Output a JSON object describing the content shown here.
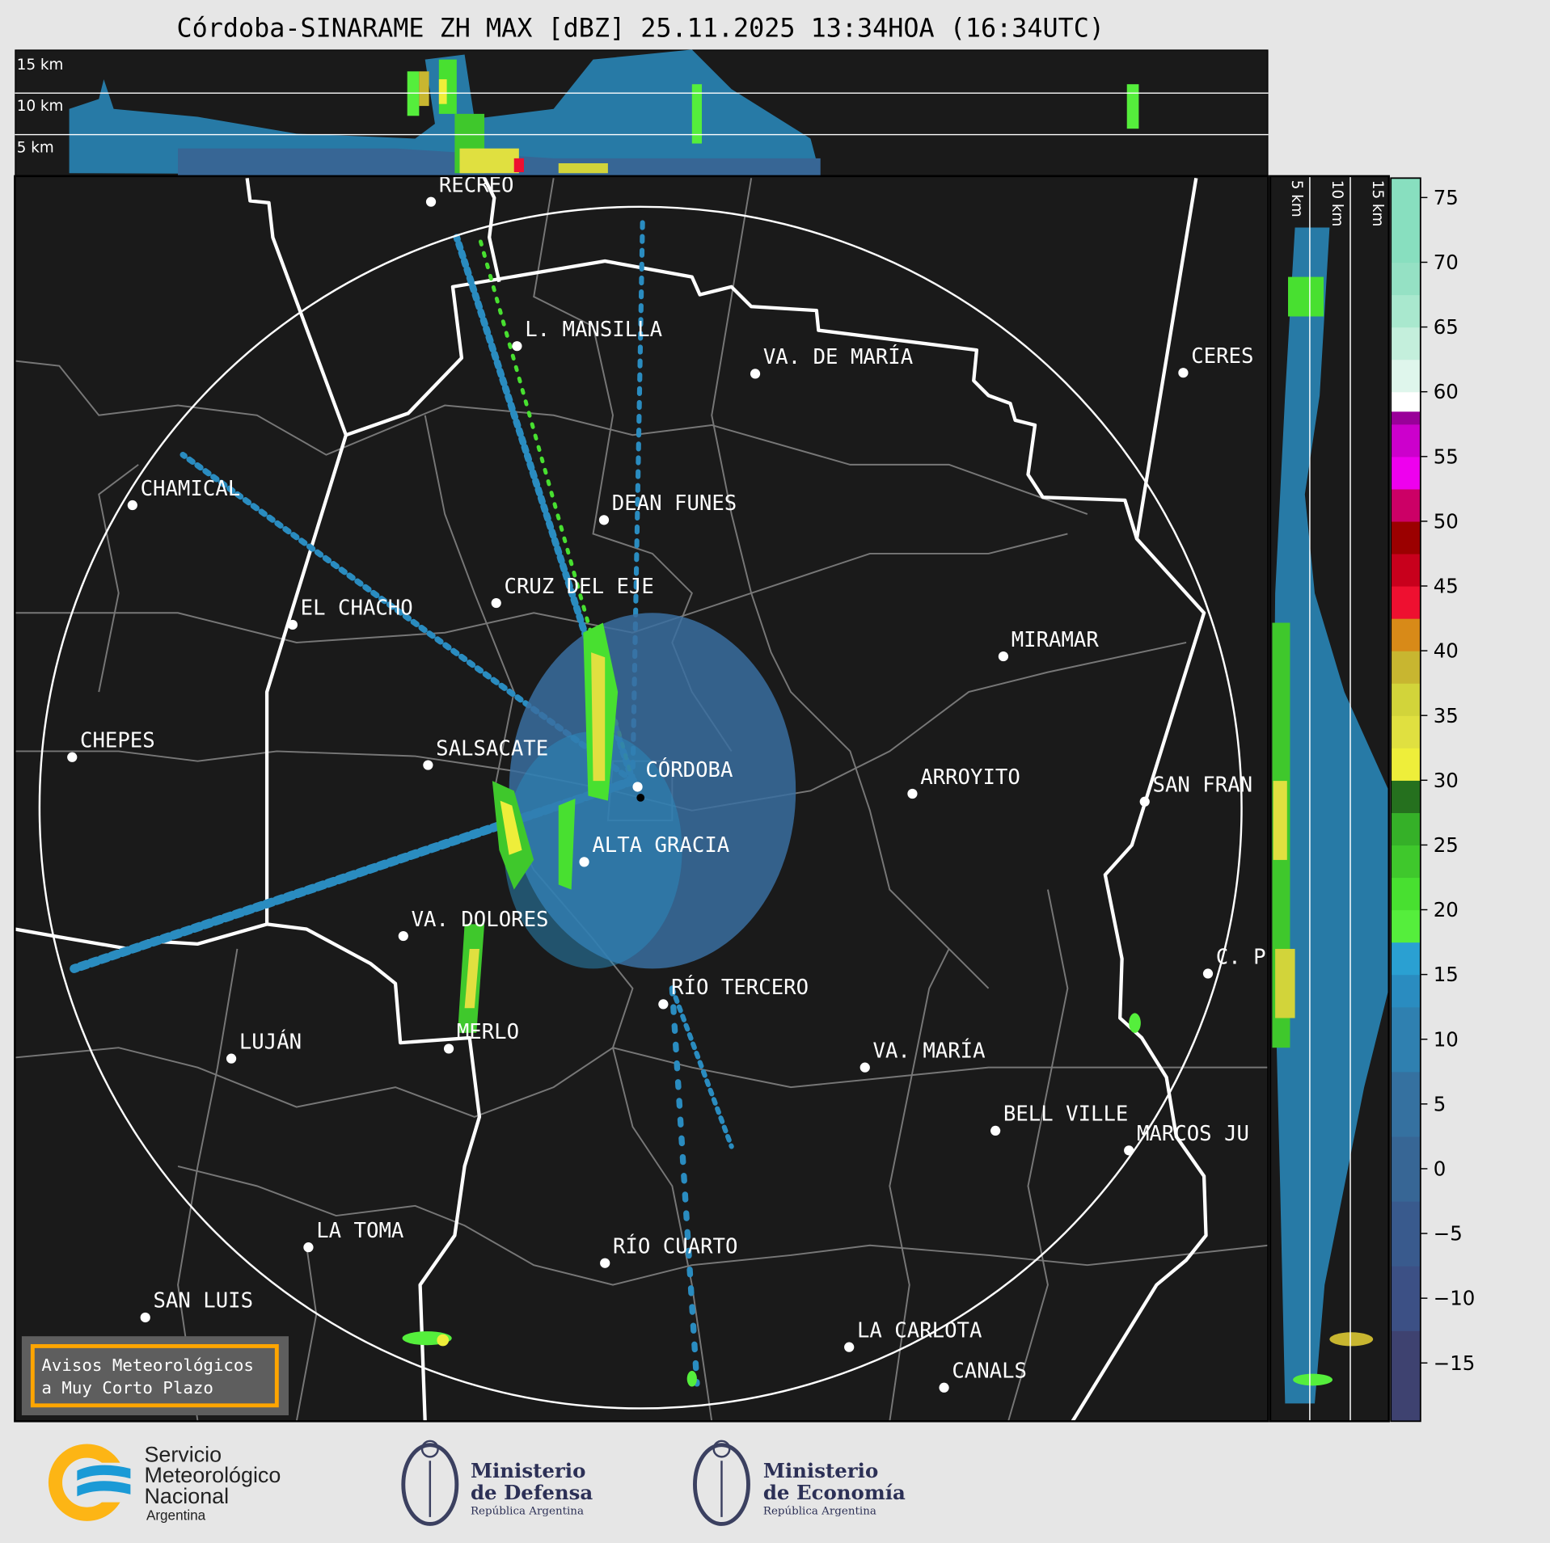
{
  "title": "Córdoba-SINARAME ZH MAX [dBZ] 25.11.2025 13:34HOA (16:34UTC)",
  "top_panel": {
    "height_labels": [
      "15 km",
      "10 km",
      "5 km"
    ]
  },
  "side_panel": {
    "height_labels": [
      "5 km",
      "10 km",
      "15 km"
    ]
  },
  "cities": [
    {
      "name": "RECREO"
    },
    {
      "name": "L. MANSILLA"
    },
    {
      "name": "VA. DE MARÍA"
    },
    {
      "name": "CERES"
    },
    {
      "name": "CHAMICAL"
    },
    {
      "name": "DEAN FUNES"
    },
    {
      "name": "CRUZ DEL EJE"
    },
    {
      "name": "EL CHACHO"
    },
    {
      "name": "MIRAMAR"
    },
    {
      "name": "CHEPES"
    },
    {
      "name": "SALSACATE"
    },
    {
      "name": "CÓRDOBA"
    },
    {
      "name": "ARROYITO"
    },
    {
      "name": "SAN FRAN"
    },
    {
      "name": "ALTA GRACIA"
    },
    {
      "name": "VA. DOLORES"
    },
    {
      "name": "C. P"
    },
    {
      "name": "RÍO TERCERO"
    },
    {
      "name": "MERLO"
    },
    {
      "name": "LUJÁN"
    },
    {
      "name": "VA. MARÍA"
    },
    {
      "name": "BELL VILLE"
    },
    {
      "name": "MARCOS JU"
    },
    {
      "name": "LA TOMA"
    },
    {
      "name": "RÍO CUARTO"
    },
    {
      "name": "SAN LUIS"
    },
    {
      "name": "LA CARLOTA"
    },
    {
      "name": "CANALS"
    }
  ],
  "warning_box": {
    "line1": "Avisos Meteorológicos",
    "line2": "a Muy Corto Plazo",
    "border_color": "#ffa500"
  },
  "colorbar": {
    "unit": "dBZ",
    "range": [
      -19.5,
      76.5
    ],
    "ticks": [
      "75",
      "70",
      "65",
      "60",
      "55",
      "50",
      "45",
      "40",
      "35",
      "30",
      "25",
      "20",
      "15",
      "10",
      "5",
      "0",
      "−5",
      "−10",
      "−15"
    ],
    "bins": [
      [
        -19.5,
        -12.5,
        "#3e4270"
      ],
      [
        -12.5,
        -7.5,
        "#3c5085"
      ],
      [
        -7.5,
        -2.5,
        "#395a8d"
      ],
      [
        -2.5,
        2.5,
        "#376695"
      ],
      [
        2.5,
        7.5,
        "#3571a0"
      ],
      [
        7.5,
        12.5,
        "#2f80b0"
      ],
      [
        12.5,
        15,
        "#2a8cc0"
      ],
      [
        15,
        17.5,
        "#2aa0d2"
      ],
      [
        17.5,
        20,
        "#55ee3c"
      ],
      [
        20,
        22.5,
        "#48e030"
      ],
      [
        22.5,
        25,
        "#3fc82c"
      ],
      [
        25,
        27.5,
        "#35b028"
      ],
      [
        27.5,
        30,
        "#25701e"
      ],
      [
        30,
        32.5,
        "#eeee3a"
      ],
      [
        32.5,
        35,
        "#e0e040"
      ],
      [
        35,
        37.5,
        "#d2d43a"
      ],
      [
        37.5,
        40,
        "#c8b630"
      ],
      [
        40,
        42.5,
        "#d88a18"
      ],
      [
        42.5,
        45,
        "#ee1030"
      ],
      [
        45,
        47.5,
        "#c8001c"
      ],
      [
        47.5,
        50,
        "#9b0000"
      ],
      [
        50,
        52.5,
        "#cc0066"
      ],
      [
        52.5,
        55,
        "#ee00ee"
      ],
      [
        55,
        57.5,
        "#cc00cc"
      ],
      [
        57.5,
        58.5,
        "#990099"
      ],
      [
        58.5,
        60,
        "#ffffff"
      ],
      [
        60,
        62.5,
        "#dff6ec"
      ],
      [
        62.5,
        65,
        "#c4efdc"
      ],
      [
        65,
        67.5,
        "#a9e8ce"
      ],
      [
        67.5,
        70,
        "#95e1c4"
      ],
      [
        70,
        76.5,
        "#88dfbf"
      ]
    ]
  },
  "footer": {
    "smn": {
      "line1": "Servicio",
      "line2": "Meteorológico",
      "line3": "Nacional",
      "line4": "Argentina"
    },
    "defensa": {
      "line1": "Ministerio",
      "line2": "de Defensa",
      "line3": "República Argentina"
    },
    "economia": {
      "line1": "Ministerio",
      "line2": "de Economía",
      "line3": "República Argentina"
    }
  }
}
